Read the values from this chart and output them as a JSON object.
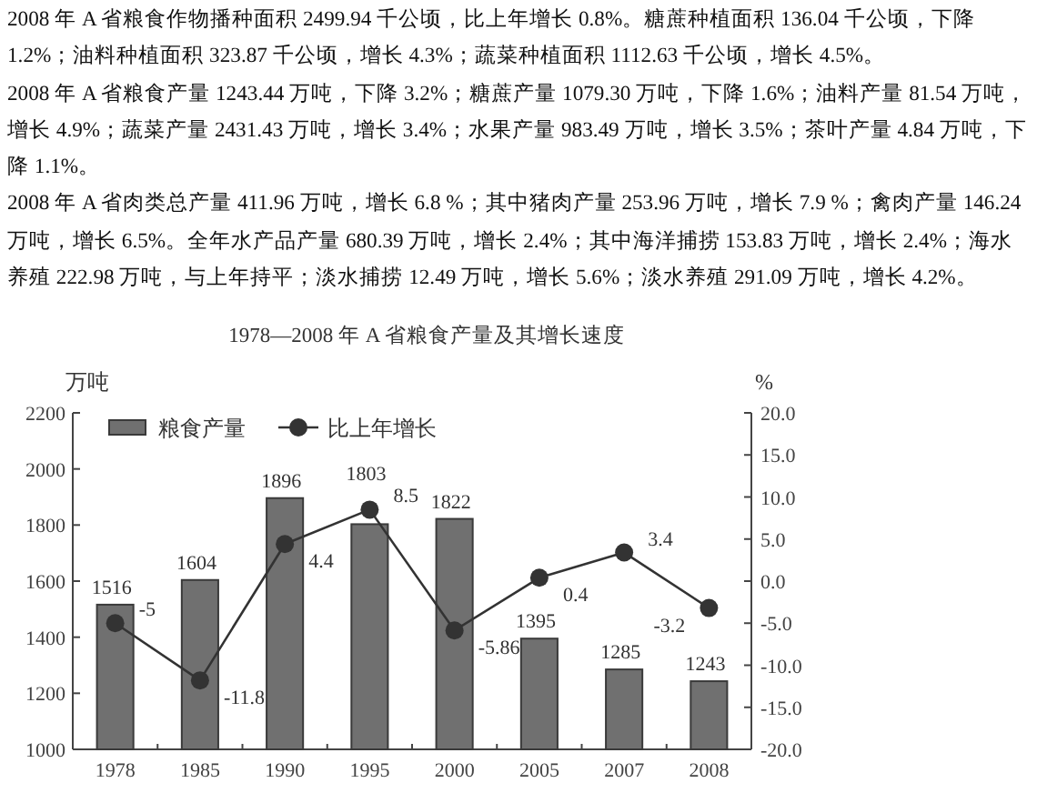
{
  "chart_data": {
    "type": "bar",
    "title": "1978—2008 年 A 省粮食产量及其增长速度",
    "ylabel": "万吨",
    "y2label": "%",
    "categories": [
      "1978",
      "1985",
      "1990",
      "1995",
      "2000",
      "2005",
      "2007",
      "2008"
    ],
    "series": [
      {
        "name": "粮食产量",
        "color": "#707070",
        "values": [
          1516,
          1604,
          1896,
          1803,
          1822,
          1395,
          1285,
          1243
        ]
      },
      {
        "name": "比上年增长",
        "type": "line",
        "axis": "y2",
        "color": "#333333",
        "values": [
          -5,
          -11.8,
          4.4,
          8.5,
          -5.86,
          0.4,
          3.4,
          -3.2
        ]
      }
    ],
    "ylim": [
      1000,
      2200
    ],
    "yticks": [
      1000,
      1200,
      1400,
      1600,
      1800,
      2000,
      2200
    ],
    "y2lim": [
      -20,
      20
    ],
    "y2ticks": [
      {
        "value": -20,
        "label": "-20.0"
      },
      {
        "value": -15,
        "label": "-15.0"
      },
      {
        "value": -10,
        "label": "-10.0"
      },
      {
        "value": -5,
        "label": "-5.0"
      },
      {
        "value": 0,
        "label": "0.0"
      },
      {
        "value": 5,
        "label": "5.0"
      },
      {
        "value": 10,
        "label": "10.0"
      },
      {
        "value": 15,
        "label": "15.0"
      },
      {
        "value": 20,
        "label": "20.0"
      }
    ],
    "marker": "circle",
    "data_labels": true,
    "legend": "top left",
    "annotations": [
      "2008 年 A 省粮食作物播种面积 2499.94 千公顷，比上年增长 0.8%。糖蔗种植面积 136.04 千公顷，下降 1.2%；油料种植面积 323.87 千公顷，增长 4.3%；蔬菜种植面积 1112.63 千公顷，增长 4.5%。",
      "2008 年 A 省粮食产量 1243.44 万吨，下降 3.2%；糖蔗产量 1079.30 万吨，下降 1.6%；油料产量 81.54 万吨，增长 4.9%；蔬菜产量 2431.43 万吨，增长 3.4%；水果产量 983.49 万吨，增长 3.5%；茶叶产量 4.84 万吨，下降 1.1%。",
      "2008 年 A 省肉类总产量 411.96 万吨，增长 6.8 %；其中猪肉产量 253.96 万吨，增长 7.9 %；禽肉产量 146.24 万吨，增长 6.5%。全年水产品产量 680.39 万吨，增长 2.4%；其中海洋捕捞 153.83 万吨，增长 2.4%；海水养殖 222.98 万吨，与上年持平；淡水捕捞 12.49 万吨，增长 5.6%；淡水养殖 291.09 万吨，增长 4.2%。"
    ]
  }
}
